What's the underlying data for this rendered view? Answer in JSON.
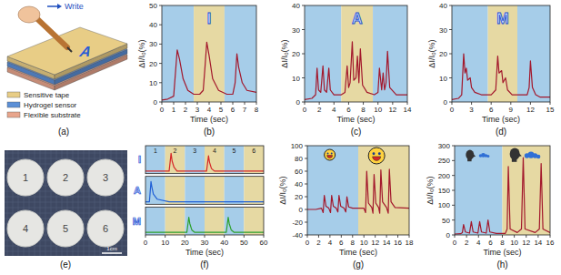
{
  "schematic": {
    "panel_label": "(a)",
    "arrow_text": "Write",
    "written_letter": "A",
    "layers": [
      {
        "label": "Sensitive tape",
        "color": "#e8cd86"
      },
      {
        "label": "Hydrogel sensor",
        "color": "#5b8fd6"
      },
      {
        "label": "Flexible substrate",
        "color": "#e8a58c"
      }
    ]
  },
  "photo": {
    "panel_label": "(e)",
    "samples": [
      "1",
      "2",
      "3",
      "4",
      "5",
      "6"
    ],
    "scale_bar": "1cm"
  },
  "chart_data": [
    {
      "type": "line",
      "panel_label": "(b)",
      "inset_text": "I",
      "x_label": "Time (sec)",
      "y_label": "ΔI/I₀(%)",
      "xlim": [
        0,
        8
      ],
      "ylim": [
        0,
        50
      ],
      "xticks": [
        0,
        1,
        2,
        3,
        4,
        5,
        6,
        7,
        8
      ],
      "yticks": [
        0,
        10,
        20,
        30,
        40,
        50
      ],
      "bands": [
        {
          "from": 0,
          "to": 2.7,
          "color": "#a6cde9"
        },
        {
          "from": 2.7,
          "to": 5.3,
          "color": "#e6d9a3"
        },
        {
          "from": 5.3,
          "to": 8,
          "color": "#a6cde9"
        }
      ],
      "x": [
        0,
        0.5,
        1.0,
        1.15,
        1.3,
        1.5,
        1.8,
        2.2,
        2.7,
        3.2,
        3.5,
        3.65,
        3.8,
        4.0,
        4.3,
        4.8,
        5.5,
        6.0,
        6.2,
        6.35,
        6.5,
        6.8,
        7.2,
        8
      ],
      "series": [
        {
          "color": "#a3182c",
          "values": [
            1,
            1.5,
            3,
            15,
            27,
            22,
            12,
            6,
            4,
            4,
            6,
            18,
            31,
            24,
            12,
            6,
            4,
            4,
            10,
            25,
            18,
            10,
            6,
            5
          ]
        }
      ]
    },
    {
      "type": "line",
      "panel_label": "(c)",
      "inset_text": "A",
      "x_label": "Time (sec)",
      "y_label": "ΔI/I₀(%)",
      "xlim": [
        0,
        14
      ],
      "ylim": [
        0,
        40
      ],
      "xticks": [
        0,
        2,
        4,
        6,
        8,
        10,
        12,
        14
      ],
      "yticks": [
        0,
        10,
        20,
        30,
        40
      ],
      "bands": [
        {
          "from": 0,
          "to": 5,
          "color": "#a6cde9"
        },
        {
          "from": 5,
          "to": 9.3,
          "color": "#e6d9a3"
        },
        {
          "from": 9.3,
          "to": 14,
          "color": "#a6cde9"
        }
      ],
      "x": [
        0,
        1.0,
        1.5,
        1.7,
        1.9,
        2.2,
        2.5,
        2.7,
        3.0,
        3.3,
        3.5,
        4.0,
        5.0,
        5.5,
        5.8,
        6.0,
        6.2,
        6.5,
        6.7,
        7.0,
        7.2,
        7.4,
        7.6,
        7.9,
        8.5,
        9.5,
        10.0,
        10.2,
        10.5,
        10.7,
        10.9,
        11.1,
        11.3,
        11.6,
        12.5,
        14
      ],
      "series": [
        {
          "color": "#a3182c",
          "values": [
            1,
            1.5,
            3,
            14,
            5,
            4,
            15,
            5,
            4,
            14,
            5,
            3,
            3,
            4,
            15,
            6,
            8,
            25,
            9,
            10,
            19,
            8,
            22,
            7,
            4,
            3,
            4,
            14,
            5,
            12,
            5,
            8,
            21,
            6,
            3,
            3
          ]
        }
      ]
    },
    {
      "type": "line",
      "panel_label": "(d)",
      "inset_text": "M",
      "x_label": "Time (sec)",
      "y_label": "ΔI/I₀(%)",
      "xlim": [
        0,
        15
      ],
      "ylim": [
        0,
        40
      ],
      "xticks": [
        0,
        3,
        6,
        9,
        12,
        15
      ],
      "yticks": [
        0,
        10,
        20,
        30,
        40
      ],
      "bands": [
        {
          "from": 0,
          "to": 5.5,
          "color": "#a6cde9"
        },
        {
          "from": 5.5,
          "to": 10,
          "color": "#e6d9a3"
        },
        {
          "from": 10,
          "to": 15,
          "color": "#a6cde9"
        }
      ],
      "x": [
        0,
        1.0,
        1.5,
        1.8,
        2.0,
        2.2,
        2.4,
        2.8,
        3.0,
        3.5,
        4.5,
        6.0,
        6.7,
        7.0,
        7.2,
        7.6,
        7.8,
        8.2,
        8.5,
        9.2,
        10.5,
        11.5,
        11.8,
        12.0,
        12.3,
        12.8,
        13.5,
        15
      ],
      "series": [
        {
          "color": "#a3182c",
          "values": [
            1,
            1.5,
            3,
            20,
            12,
            14,
            9,
            10,
            6,
            4,
            3,
            3,
            5,
            19,
            12,
            13,
            8,
            10,
            5,
            3,
            3,
            3,
            6,
            17,
            6,
            3,
            2,
            2
          ]
        }
      ]
    },
    {
      "type": "strips",
      "panel_label": "(f)",
      "x_label": "Time (sec)",
      "xlim": [
        0,
        60
      ],
      "ylim": [
        -0.1,
        1
      ],
      "xticks": [
        0,
        10,
        20,
        30,
        40,
        50,
        60
      ],
      "tick_labels": "x",
      "bands": [
        {
          "from": 0,
          "to": 10,
          "color": "#a6cde9",
          "label": "1"
        },
        {
          "from": 10,
          "to": 20,
          "color": "#e6d9a3",
          "label": "2"
        },
        {
          "from": 20,
          "to": 30,
          "color": "#a6cde9",
          "label": "3"
        },
        {
          "from": 30,
          "to": 40,
          "color": "#e6d9a3",
          "label": "4"
        },
        {
          "from": 40,
          "to": 50,
          "color": "#a6cde9",
          "label": "5"
        },
        {
          "from": 50,
          "to": 60,
          "color": "#e6d9a3",
          "label": "6"
        }
      ],
      "x": [
        0,
        2,
        2.8,
        3.2,
        4,
        6,
        12,
        13,
        13.5,
        14.5,
        16,
        21,
        22,
        22.5,
        23.5,
        25,
        31,
        32,
        32.5,
        33.5,
        35,
        41,
        42,
        42.5,
        43.5,
        45,
        60
      ],
      "series": [
        {
          "name": "I",
          "color": "#d62728",
          "values": [
            0,
            0,
            0,
            0,
            0,
            0,
            0,
            0.7,
            0.4,
            0.15,
            0,
            0,
            0,
            0,
            0,
            0,
            0,
            0.6,
            0.35,
            0.1,
            0,
            0,
            0,
            0,
            0,
            0,
            0
          ]
        },
        {
          "name": "A",
          "color": "#1f5fd6",
          "values": [
            0,
            0,
            0.8,
            0.6,
            0.3,
            0.1,
            0,
            0,
            0,
            0,
            0,
            0,
            0,
            0,
            0,
            0,
            0,
            0,
            0,
            0,
            0,
            0,
            0,
            0,
            0,
            0,
            0
          ]
        },
        {
          "name": "M",
          "color": "#2ca02c",
          "values": [
            0,
            0,
            0,
            0,
            0,
            0,
            0,
            0,
            0,
            0,
            0,
            0,
            0.6,
            0.35,
            0.1,
            0,
            0,
            0,
            0,
            0,
            0,
            0,
            0.6,
            0.35,
            0.1,
            0,
            0
          ]
        }
      ]
    },
    {
      "type": "line",
      "panel_label": "(g)",
      "x_label": "Time (sec)",
      "y_label": "ΔI/I₀(%)",
      "xlim": [
        0,
        18
      ],
      "ylim": [
        -40,
        100
      ],
      "xticks": [
        0,
        2,
        4,
        6,
        8,
        10,
        12,
        14,
        16,
        18
      ],
      "yticks": [
        -40,
        -20,
        0,
        20,
        40,
        60,
        80,
        100
      ],
      "bands": [
        {
          "from": 0,
          "to": 9,
          "color": "#a6cde9"
        },
        {
          "from": 9,
          "to": 18,
          "color": "#e6d9a3"
        }
      ],
      "x": [
        0,
        1.5,
        2.5,
        2.8,
        3.0,
        3.3,
        3.8,
        4.1,
        4.3,
        4.6,
        5.1,
        5.4,
        5.6,
        5.9,
        6.5,
        6.8,
        7.0,
        7.3,
        8.0,
        9.0,
        10.0,
        10.3,
        10.5,
        10.8,
        11.4,
        11.6,
        11.8,
        12.1,
        12.6,
        12.8,
        13.0,
        13.3,
        14.0,
        14.3,
        14.5,
        14.8,
        15.5,
        18
      ],
      "series": [
        {
          "color": "#a3182c",
          "values": [
            0,
            0,
            2,
            -5,
            22,
            5,
            2,
            -5,
            22,
            5,
            2,
            -4,
            22,
            5,
            2,
            -4,
            20,
            4,
            2,
            2,
            2,
            -5,
            60,
            10,
            3,
            -6,
            55,
            10,
            3,
            -6,
            62,
            12,
            3,
            -6,
            63,
            12,
            3,
            2
          ]
        }
      ]
    },
    {
      "type": "line",
      "panel_label": "(h)",
      "x_label": "Time (sec)",
      "y_label": "ΔI/I₀(%)",
      "xlim": [
        0,
        16
      ],
      "ylim": [
        0,
        300
      ],
      "xticks": [
        0,
        2,
        4,
        6,
        8,
        10,
        12,
        14,
        16
      ],
      "yticks": [
        0,
        50,
        100,
        150,
        200,
        250,
        300
      ],
      "bands": [
        {
          "from": 0,
          "to": 8,
          "color": "#a6cde9"
        },
        {
          "from": 8,
          "to": 16,
          "color": "#e6d9a3"
        }
      ],
      "x": [
        0,
        1.0,
        1.3,
        1.5,
        1.8,
        2.5,
        2.8,
        3.1,
        3.9,
        4.2,
        4.5,
        5.3,
        5.6,
        5.9,
        7.0,
        8.5,
        8.8,
        9.0,
        9.3,
        10.5,
        11.2,
        11.5,
        11.8,
        13.5,
        14.2,
        14.5,
        14.8,
        16
      ],
      "series": [
        {
          "color": "#a3182c",
          "values": [
            3,
            4,
            8,
            35,
            10,
            6,
            45,
            10,
            6,
            45,
            10,
            6,
            50,
            10,
            5,
            5,
            20,
            230,
            20,
            8,
            20,
            260,
            20,
            8,
            20,
            240,
            20,
            8
          ]
        }
      ]
    }
  ]
}
